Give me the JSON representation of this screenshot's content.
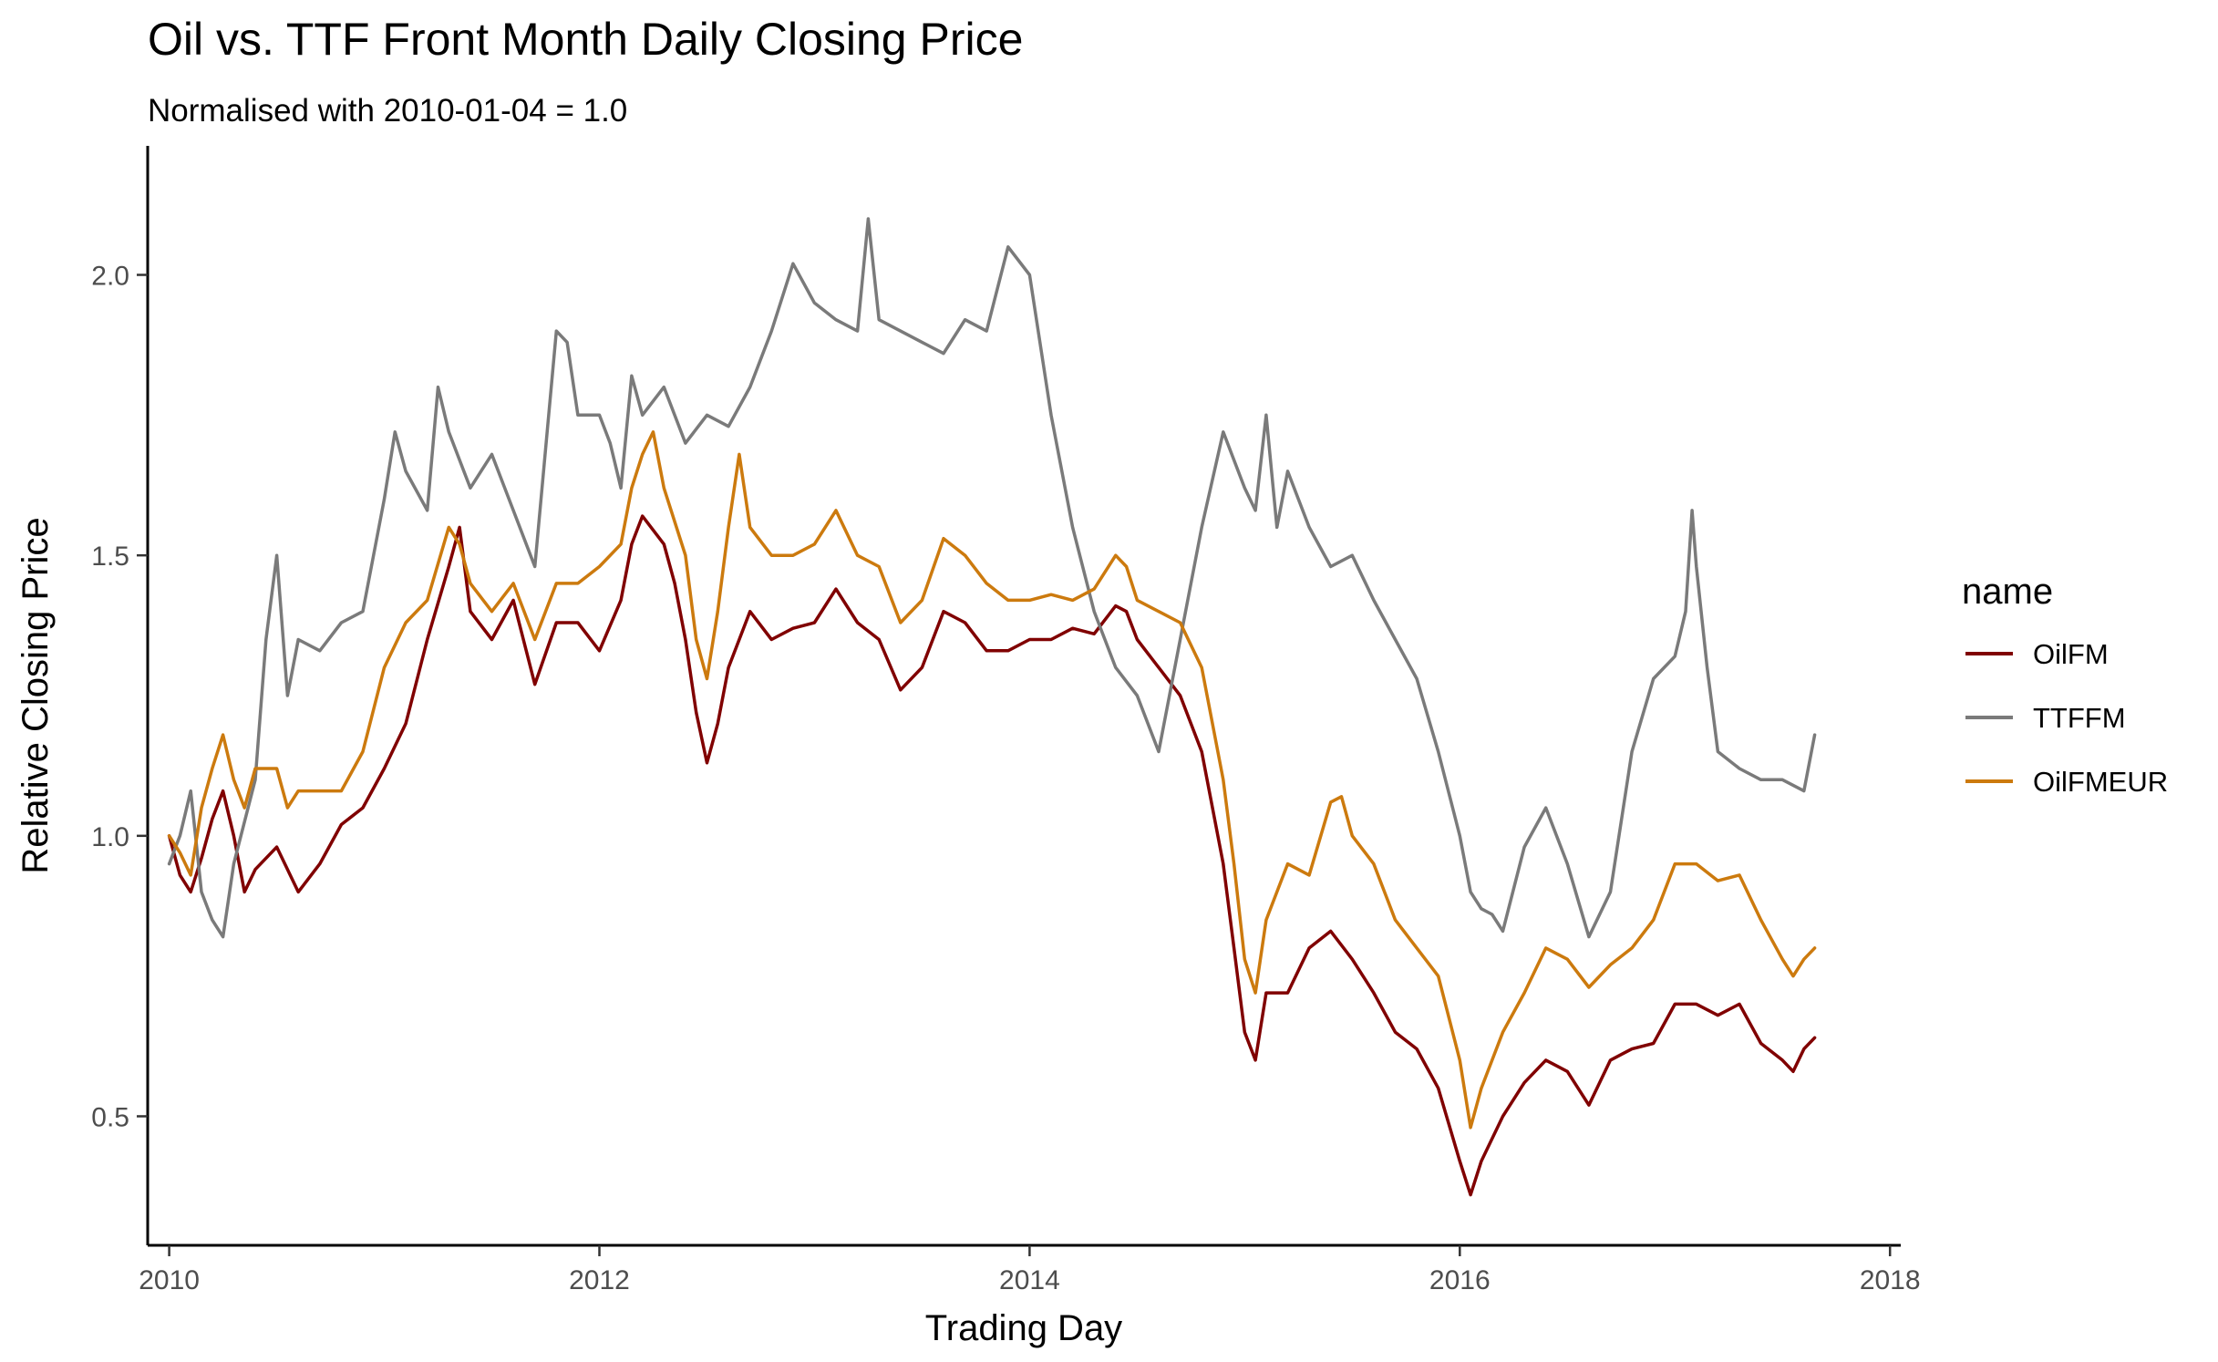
{
  "chart_data": {
    "type": "line",
    "title": "Oil vs. TTF Front Month Daily Closing Price",
    "subtitle": "Normalised with 2010-01-04 = 1.0",
    "xlabel": "Trading Day",
    "ylabel": "Relative Closing Price",
    "xlim": [
      2009.9,
      2018.05
    ],
    "ylim": [
      0.27,
      2.23
    ],
    "x_ticks": [
      2010,
      2012,
      2014,
      2016,
      2018
    ],
    "x_tick_labels": [
      "2010",
      "2012",
      "2014",
      "2016",
      "2018"
    ],
    "y_ticks": [
      0.5,
      1.0,
      1.5,
      2.0
    ],
    "y_tick_labels": [
      "0.5",
      "1.0",
      "1.5",
      "2.0"
    ],
    "grid": false,
    "legend": {
      "title": "name",
      "position": "right"
    },
    "series": [
      {
        "name": "OilFM",
        "color": "#800000",
        "points": [
          [
            2010.0,
            1.0
          ],
          [
            2010.05,
            0.93
          ],
          [
            2010.1,
            0.9
          ],
          [
            2010.15,
            0.96
          ],
          [
            2010.2,
            1.03
          ],
          [
            2010.25,
            1.08
          ],
          [
            2010.3,
            1.0
          ],
          [
            2010.35,
            0.9
          ],
          [
            2010.4,
            0.94
          ],
          [
            2010.5,
            0.98
          ],
          [
            2010.6,
            0.9
          ],
          [
            2010.7,
            0.95
          ],
          [
            2010.8,
            1.02
          ],
          [
            2010.9,
            1.05
          ],
          [
            2011.0,
            1.12
          ],
          [
            2011.1,
            1.2
          ],
          [
            2011.2,
            1.35
          ],
          [
            2011.3,
            1.48
          ],
          [
            2011.35,
            1.55
          ],
          [
            2011.4,
            1.4
          ],
          [
            2011.5,
            1.35
          ],
          [
            2011.6,
            1.42
          ],
          [
            2011.7,
            1.27
          ],
          [
            2011.8,
            1.38
          ],
          [
            2011.9,
            1.38
          ],
          [
            2012.0,
            1.33
          ],
          [
            2012.1,
            1.42
          ],
          [
            2012.15,
            1.52
          ],
          [
            2012.2,
            1.57
          ],
          [
            2012.3,
            1.52
          ],
          [
            2012.35,
            1.45
          ],
          [
            2012.4,
            1.35
          ],
          [
            2012.45,
            1.22
          ],
          [
            2012.5,
            1.13
          ],
          [
            2012.55,
            1.2
          ],
          [
            2012.6,
            1.3
          ],
          [
            2012.7,
            1.4
          ],
          [
            2012.8,
            1.35
          ],
          [
            2012.9,
            1.37
          ],
          [
            2013.0,
            1.38
          ],
          [
            2013.1,
            1.44
          ],
          [
            2013.2,
            1.38
          ],
          [
            2013.3,
            1.35
          ],
          [
            2013.4,
            1.26
          ],
          [
            2013.5,
            1.3
          ],
          [
            2013.6,
            1.4
          ],
          [
            2013.7,
            1.38
          ],
          [
            2013.8,
            1.33
          ],
          [
            2013.9,
            1.33
          ],
          [
            2014.0,
            1.35
          ],
          [
            2014.1,
            1.35
          ],
          [
            2014.2,
            1.37
          ],
          [
            2014.3,
            1.36
          ],
          [
            2014.4,
            1.41
          ],
          [
            2014.45,
            1.4
          ],
          [
            2014.5,
            1.35
          ],
          [
            2014.6,
            1.3
          ],
          [
            2014.7,
            1.25
          ],
          [
            2014.8,
            1.15
          ],
          [
            2014.9,
            0.95
          ],
          [
            2014.95,
            0.8
          ],
          [
            2015.0,
            0.65
          ],
          [
            2015.05,
            0.6
          ],
          [
            2015.1,
            0.72
          ],
          [
            2015.2,
            0.72
          ],
          [
            2015.3,
            0.8
          ],
          [
            2015.4,
            0.83
          ],
          [
            2015.5,
            0.78
          ],
          [
            2015.6,
            0.72
          ],
          [
            2015.7,
            0.65
          ],
          [
            2015.8,
            0.62
          ],
          [
            2015.9,
            0.55
          ],
          [
            2016.0,
            0.42
          ],
          [
            2016.05,
            0.36
          ],
          [
            2016.1,
            0.42
          ],
          [
            2016.2,
            0.5
          ],
          [
            2016.3,
            0.56
          ],
          [
            2016.4,
            0.6
          ],
          [
            2016.5,
            0.58
          ],
          [
            2016.6,
            0.52
          ],
          [
            2016.7,
            0.6
          ],
          [
            2016.8,
            0.62
          ],
          [
            2016.9,
            0.63
          ],
          [
            2017.0,
            0.7
          ],
          [
            2017.1,
            0.7
          ],
          [
            2017.2,
            0.68
          ],
          [
            2017.3,
            0.7
          ],
          [
            2017.4,
            0.63
          ],
          [
            2017.5,
            0.6
          ],
          [
            2017.55,
            0.58
          ],
          [
            2017.6,
            0.62
          ],
          [
            2017.65,
            0.64
          ]
        ]
      },
      {
        "name": "TTFFM",
        "color": "#7a7a7a",
        "points": [
          [
            2010.0,
            0.95
          ],
          [
            2010.05,
            1.0
          ],
          [
            2010.1,
            1.08
          ],
          [
            2010.15,
            0.9
          ],
          [
            2010.2,
            0.85
          ],
          [
            2010.25,
            0.82
          ],
          [
            2010.3,
            0.95
          ],
          [
            2010.4,
            1.1
          ],
          [
            2010.45,
            1.35
          ],
          [
            2010.5,
            1.5
          ],
          [
            2010.55,
            1.25
          ],
          [
            2010.6,
            1.35
          ],
          [
            2010.7,
            1.33
          ],
          [
            2010.8,
            1.38
          ],
          [
            2010.9,
            1.4
          ],
          [
            2011.0,
            1.6
          ],
          [
            2011.05,
            1.72
          ],
          [
            2011.1,
            1.65
          ],
          [
            2011.2,
            1.58
          ],
          [
            2011.25,
            1.8
          ],
          [
            2011.3,
            1.72
          ],
          [
            2011.4,
            1.62
          ],
          [
            2011.5,
            1.68
          ],
          [
            2011.6,
            1.58
          ],
          [
            2011.7,
            1.48
          ],
          [
            2011.8,
            1.9
          ],
          [
            2011.85,
            1.88
          ],
          [
            2011.9,
            1.75
          ],
          [
            2012.0,
            1.75
          ],
          [
            2012.05,
            1.7
          ],
          [
            2012.1,
            1.62
          ],
          [
            2012.15,
            1.82
          ],
          [
            2012.2,
            1.75
          ],
          [
            2012.3,
            1.8
          ],
          [
            2012.4,
            1.7
          ],
          [
            2012.5,
            1.75
          ],
          [
            2012.6,
            1.73
          ],
          [
            2012.7,
            1.8
          ],
          [
            2012.8,
            1.9
          ],
          [
            2012.9,
            2.02
          ],
          [
            2013.0,
            1.95
          ],
          [
            2013.1,
            1.92
          ],
          [
            2013.2,
            1.9
          ],
          [
            2013.25,
            2.1
          ],
          [
            2013.3,
            1.92
          ],
          [
            2013.4,
            1.9
          ],
          [
            2013.5,
            1.88
          ],
          [
            2013.6,
            1.86
          ],
          [
            2013.7,
            1.92
          ],
          [
            2013.8,
            1.9
          ],
          [
            2013.9,
            2.05
          ],
          [
            2014.0,
            2.0
          ],
          [
            2014.1,
            1.75
          ],
          [
            2014.2,
            1.55
          ],
          [
            2014.3,
            1.4
          ],
          [
            2014.4,
            1.3
          ],
          [
            2014.5,
            1.25
          ],
          [
            2014.6,
            1.15
          ],
          [
            2014.7,
            1.35
          ],
          [
            2014.8,
            1.55
          ],
          [
            2014.9,
            1.72
          ],
          [
            2015.0,
            1.62
          ],
          [
            2015.05,
            1.58
          ],
          [
            2015.1,
            1.75
          ],
          [
            2015.15,
            1.55
          ],
          [
            2015.2,
            1.65
          ],
          [
            2015.3,
            1.55
          ],
          [
            2015.4,
            1.48
          ],
          [
            2015.5,
            1.5
          ],
          [
            2015.6,
            1.42
          ],
          [
            2015.7,
            1.35
          ],
          [
            2015.8,
            1.28
          ],
          [
            2015.9,
            1.15
          ],
          [
            2016.0,
            1.0
          ],
          [
            2016.05,
            0.9
          ],
          [
            2016.1,
            0.87
          ],
          [
            2016.15,
            0.86
          ],
          [
            2016.2,
            0.83
          ],
          [
            2016.3,
            0.98
          ],
          [
            2016.4,
            1.05
          ],
          [
            2016.5,
            0.95
          ],
          [
            2016.6,
            0.82
          ],
          [
            2016.7,
            0.9
          ],
          [
            2016.8,
            1.15
          ],
          [
            2016.9,
            1.28
          ],
          [
            2017.0,
            1.32
          ],
          [
            2017.05,
            1.4
          ],
          [
            2017.08,
            1.58
          ],
          [
            2017.1,
            1.48
          ],
          [
            2017.15,
            1.3
          ],
          [
            2017.2,
            1.15
          ],
          [
            2017.3,
            1.12
          ],
          [
            2017.4,
            1.1
          ],
          [
            2017.5,
            1.1
          ],
          [
            2017.6,
            1.08
          ],
          [
            2017.65,
            1.18
          ]
        ]
      },
      {
        "name": "OilFMEUR",
        "color": "#cc7a0e",
        "points": [
          [
            2010.0,
            1.0
          ],
          [
            2010.05,
            0.97
          ],
          [
            2010.1,
            0.93
          ],
          [
            2010.15,
            1.05
          ],
          [
            2010.2,
            1.12
          ],
          [
            2010.25,
            1.18
          ],
          [
            2010.3,
            1.1
          ],
          [
            2010.35,
            1.05
          ],
          [
            2010.4,
            1.12
          ],
          [
            2010.5,
            1.12
          ],
          [
            2010.55,
            1.05
          ],
          [
            2010.6,
            1.08
          ],
          [
            2010.7,
            1.08
          ],
          [
            2010.8,
            1.08
          ],
          [
            2010.9,
            1.15
          ],
          [
            2011.0,
            1.3
          ],
          [
            2011.1,
            1.38
          ],
          [
            2011.2,
            1.42
          ],
          [
            2011.3,
            1.55
          ],
          [
            2011.35,
            1.52
          ],
          [
            2011.4,
            1.45
          ],
          [
            2011.5,
            1.4
          ],
          [
            2011.6,
            1.45
          ],
          [
            2011.7,
            1.35
          ],
          [
            2011.8,
            1.45
          ],
          [
            2011.9,
            1.45
          ],
          [
            2012.0,
            1.48
          ],
          [
            2012.1,
            1.52
          ],
          [
            2012.15,
            1.62
          ],
          [
            2012.2,
            1.68
          ],
          [
            2012.25,
            1.72
          ],
          [
            2012.3,
            1.62
          ],
          [
            2012.4,
            1.5
          ],
          [
            2012.45,
            1.35
          ],
          [
            2012.5,
            1.28
          ],
          [
            2012.55,
            1.4
          ],
          [
            2012.6,
            1.55
          ],
          [
            2012.65,
            1.68
          ],
          [
            2012.7,
            1.55
          ],
          [
            2012.8,
            1.5
          ],
          [
            2012.9,
            1.5
          ],
          [
            2013.0,
            1.52
          ],
          [
            2013.1,
            1.58
          ],
          [
            2013.2,
            1.5
          ],
          [
            2013.3,
            1.48
          ],
          [
            2013.4,
            1.38
          ],
          [
            2013.5,
            1.42
          ],
          [
            2013.6,
            1.53
          ],
          [
            2013.7,
            1.5
          ],
          [
            2013.8,
            1.45
          ],
          [
            2013.9,
            1.42
          ],
          [
            2014.0,
            1.42
          ],
          [
            2014.1,
            1.43
          ],
          [
            2014.2,
            1.42
          ],
          [
            2014.3,
            1.44
          ],
          [
            2014.4,
            1.5
          ],
          [
            2014.45,
            1.48
          ],
          [
            2014.5,
            1.42
          ],
          [
            2014.6,
            1.4
          ],
          [
            2014.7,
            1.38
          ],
          [
            2014.8,
            1.3
          ],
          [
            2014.9,
            1.1
          ],
          [
            2014.95,
            0.95
          ],
          [
            2015.0,
            0.78
          ],
          [
            2015.05,
            0.72
          ],
          [
            2015.1,
            0.85
          ],
          [
            2015.2,
            0.95
          ],
          [
            2015.3,
            0.93
          ],
          [
            2015.4,
            1.06
          ],
          [
            2015.45,
            1.07
          ],
          [
            2015.5,
            1.0
          ],
          [
            2015.6,
            0.95
          ],
          [
            2015.7,
            0.85
          ],
          [
            2015.8,
            0.8
          ],
          [
            2015.9,
            0.75
          ],
          [
            2016.0,
            0.6
          ],
          [
            2016.05,
            0.48
          ],
          [
            2016.1,
            0.55
          ],
          [
            2016.2,
            0.65
          ],
          [
            2016.3,
            0.72
          ],
          [
            2016.4,
            0.8
          ],
          [
            2016.5,
            0.78
          ],
          [
            2016.6,
            0.73
          ],
          [
            2016.7,
            0.77
          ],
          [
            2016.8,
            0.8
          ],
          [
            2016.9,
            0.85
          ],
          [
            2017.0,
            0.95
          ],
          [
            2017.1,
            0.95
          ],
          [
            2017.2,
            0.92
          ],
          [
            2017.3,
            0.93
          ],
          [
            2017.4,
            0.85
          ],
          [
            2017.5,
            0.78
          ],
          [
            2017.55,
            0.75
          ],
          [
            2017.6,
            0.78
          ],
          [
            2017.65,
            0.8
          ]
        ]
      }
    ]
  }
}
